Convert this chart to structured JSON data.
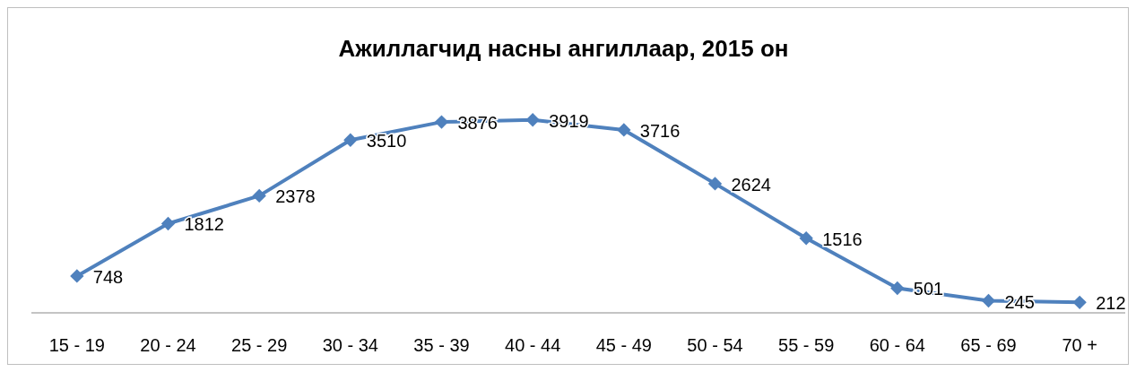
{
  "chart_data": {
    "type": "line",
    "title": "Ажиллагчид насны ангиллаар, 2015 он",
    "categories": [
      "15 - 19",
      "20 - 24",
      "25 - 29",
      "30 - 34",
      "35 - 39",
      "40 - 44",
      "45 - 49",
      "50 - 54",
      "55 - 59",
      "60 - 64",
      "65 - 69",
      "70 +"
    ],
    "series": [
      {
        "color": "#4f81bd",
        "values": [
          748,
          1812,
          2378,
          3510,
          3876,
          3919,
          3716,
          2624,
          1516,
          501,
          245,
          212
        ]
      }
    ],
    "data_labels": true,
    "marker": "diamond",
    "line_style": "solid",
    "grid": false,
    "tick_labels": "x"
  }
}
